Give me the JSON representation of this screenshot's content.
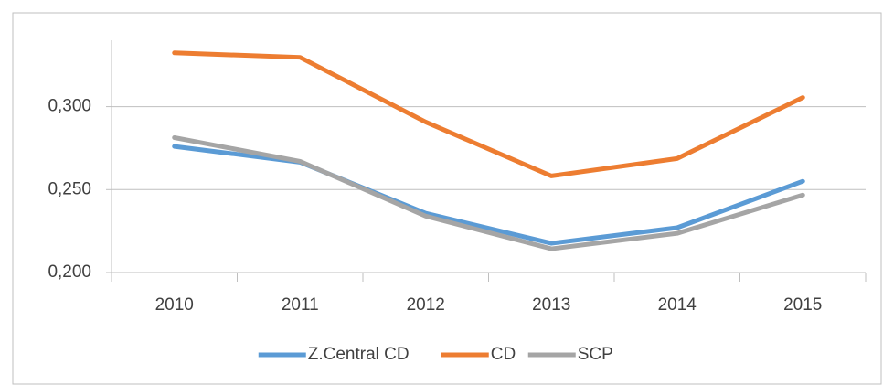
{
  "chart_data": {
    "type": "line",
    "categories": [
      "2010",
      "2011",
      "2012",
      "2013",
      "2014",
      "2015"
    ],
    "series": [
      {
        "name": "Z.Central CD",
        "color": "#5b9bd5",
        "values": [
          0.276,
          0.2665,
          0.2357,
          0.2176,
          0.227,
          0.255
        ]
      },
      {
        "name": "CD",
        "color": "#ed7d31",
        "values": [
          0.3324,
          0.3297,
          0.2907,
          0.2582,
          0.2687,
          0.3055
        ]
      },
      {
        "name": "SCP",
        "color": "#a5a5a5",
        "values": [
          0.2813,
          0.267,
          0.234,
          0.2143,
          0.2236,
          0.2467
        ]
      }
    ],
    "ylim": [
      0.2,
      0.34
    ],
    "yticks": [
      {
        "value": 0.2,
        "label": "0,200"
      },
      {
        "value": 0.25,
        "label": "0,250"
      },
      {
        "value": 0.3,
        "label": "0,300"
      }
    ],
    "grid": true,
    "legend": "bottom"
  }
}
